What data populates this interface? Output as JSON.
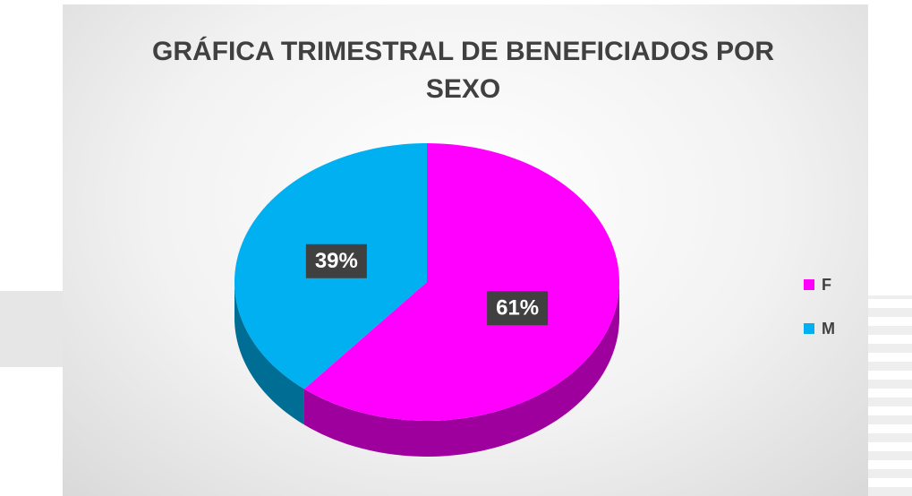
{
  "chart_data": {
    "type": "pie",
    "title": "GRÁFICA TRIMESTRAL DE BENEFICIADOS POR SEXO",
    "categories": [
      "F",
      "M"
    ],
    "values": [
      61,
      39
    ],
    "value_labels": [
      "61%",
      "39%"
    ],
    "colors": [
      "#ff00ff",
      "#00b0f0"
    ],
    "legend": "right"
  }
}
